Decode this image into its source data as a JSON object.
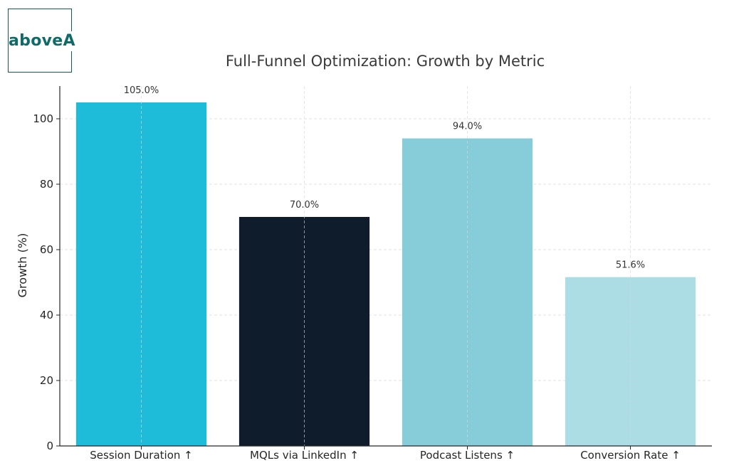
{
  "logo": {
    "text": "aboveA"
  },
  "chart_data": {
    "type": "bar",
    "title": "Full-Funnel Optimization: Growth by Metric",
    "xlabel": "",
    "ylabel": "Growth (%)",
    "categories": [
      "Session Duration ↑",
      "MQLs via LinkedIn ↑",
      "Podcast Listens ↑",
      "Conversion Rate ↑"
    ],
    "values": [
      105.0,
      70.0,
      94.0,
      51.6
    ],
    "value_labels": [
      "105.0%",
      "70.0%",
      "94.0%",
      "51.6%"
    ],
    "colors": [
      "#1ebcd9",
      "#0f1c2b",
      "#86cdd9",
      "#acdde5"
    ],
    "ylim": [
      0,
      110
    ],
    "yticks": [
      0,
      20,
      40,
      60,
      80,
      100
    ],
    "grid": true
  }
}
